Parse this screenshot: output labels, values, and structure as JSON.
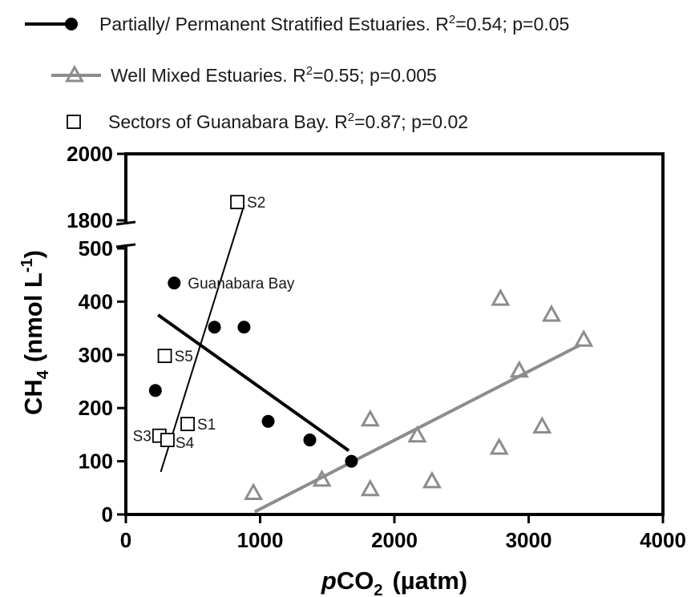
{
  "chart_data": {
    "type": "scatter",
    "title": "",
    "xlabel_prefix": "p",
    "xlabel_main": "CO",
    "xlabel_sub": "2",
    "xlabel_unit": "(µatm)",
    "ylabel_main": "CH",
    "ylabel_sub": "4",
    "ylabel_unit": "(nmol L",
    "ylabel_sup": "-1",
    "ylabel_close": ")",
    "xlim": [
      0,
      4000
    ],
    "x_ticks": [
      0,
      1000,
      2000,
      3000,
      4000
    ],
    "x_tick_labels": [
      "0",
      "1000",
      "2000",
      "3000",
      "4000"
    ],
    "ylim_lower": [
      0,
      500
    ],
    "y_ticks_lower": [
      0,
      100,
      200,
      300,
      400,
      500
    ],
    "y_tick_labels_lower": [
      "0",
      "100",
      "200",
      "300",
      "400",
      "500"
    ],
    "ylim_upper": [
      1800,
      2000
    ],
    "y_ticks_upper": [
      1800,
      2000
    ],
    "y_tick_labels_upper": [
      "1800",
      "2000"
    ],
    "y_axis_break": true,
    "grid": false,
    "legend_position": "top",
    "series": [
      {
        "name": "Partially/ Permanent Stratified Estuaries.",
        "legend_stat_prefix": "R",
        "legend_stat_sup": "2",
        "legend_stat_rest": "=0.54; p=0.05",
        "marker": "filled-circle",
        "color": "#000000",
        "x": [
          360,
          220,
          660,
          880,
          1060,
          1370,
          1680
        ],
        "y": [
          435,
          233,
          352,
          352,
          175,
          140,
          100
        ],
        "fit": {
          "x": [
            240,
            1660
          ],
          "y": [
            375,
            120
          ]
        }
      },
      {
        "name": "Well Mixed Estuaries.",
        "legend_stat_prefix": "R",
        "legend_stat_sup": "2",
        "legend_stat_rest": "=0.55; p=0.005",
        "marker": "open-triangle",
        "color": "#8c8c8c",
        "x": [
          950,
          1460,
          1820,
          1820,
          2170,
          2280,
          2780,
          2790,
          2930,
          3100,
          3170,
          3410
        ],
        "y": [
          40,
          65,
          47,
          178,
          148,
          62,
          125,
          405,
          270,
          165,
          375,
          328
        ],
        "fit": {
          "x": [
            960,
            3380
          ],
          "y": [
            5,
            318
          ]
        }
      },
      {
        "name": "Sectors of Guanabara Bay.",
        "legend_stat_prefix": "R",
        "legend_stat_sup": "2",
        "legend_stat_rest": "=0.87; p=0.02",
        "marker": "open-square",
        "color": "#000000",
        "points": [
          {
            "label": "S1",
            "x": 460,
            "y": 170
          },
          {
            "label": "S2",
            "x": 830,
            "y": 1855
          },
          {
            "label": "S3",
            "x": 250,
            "y": 148
          },
          {
            "label": "S4",
            "x": 310,
            "y": 140
          },
          {
            "label": "S5",
            "x": 290,
            "y": 298
          }
        ],
        "fit": {
          "x": [
            260,
            880
          ],
          "y": [
            80,
            1845
          ]
        }
      }
    ],
    "annotations": [
      {
        "text": "Guanabara Bay",
        "x": 360,
        "y": 435
      }
    ]
  }
}
